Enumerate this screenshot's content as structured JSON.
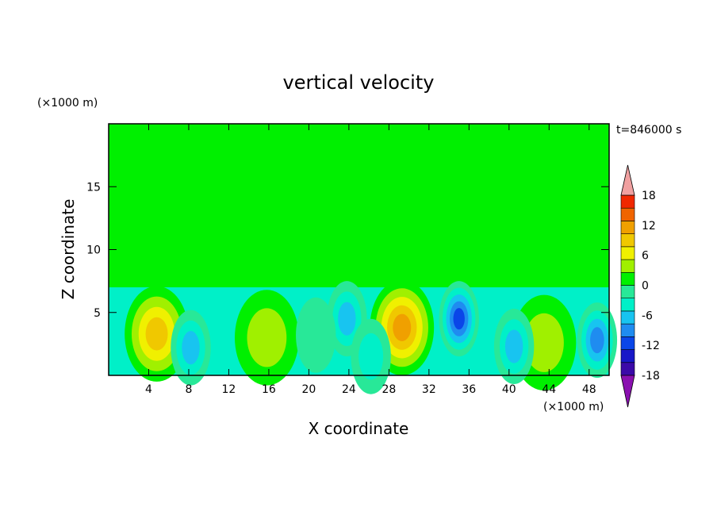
{
  "chart_data": {
    "type": "heatmap",
    "title": "vertical velocity",
    "xlabel": "X coordinate",
    "ylabel": "Z coordinate",
    "x_unit": "(×1000 m)",
    "y_unit": "(×1000 m)",
    "time_label": "t=846000 s",
    "xlim": [
      0,
      50
    ],
    "ylim": [
      0,
      20
    ],
    "x_ticks": [
      4,
      8,
      12,
      16,
      20,
      24,
      28,
      32,
      36,
      40,
      44,
      48
    ],
    "y_ticks": [
      5,
      10,
      15
    ],
    "grid": false,
    "colorbar": {
      "position": "right",
      "tick_labels": [
        "18",
        "12",
        "6",
        "0",
        "-6",
        "-12",
        "-18"
      ],
      "tick_values": [
        18,
        12,
        6,
        0,
        -6,
        -12,
        -18
      ],
      "levels": [
        -21,
        -18,
        -15,
        -12,
        -9,
        -6,
        -3,
        0,
        3,
        6,
        9,
        12,
        15,
        18,
        21
      ],
      "colors": [
        "#8a10b0",
        "#3b0aa8",
        "#1818c8",
        "#0a46e8",
        "#1f8cf0",
        "#18c4f0",
        "#00f0c8",
        "#28e898",
        "#00f000",
        "#a0f000",
        "#f0f000",
        "#f0c800",
        "#f0a000",
        "#f06400",
        "#f02800",
        "#f0a0a0"
      ]
    },
    "features": [
      {
        "x": 4.8,
        "z": 3.3,
        "w": 14,
        "label": "updraft"
      },
      {
        "x": 29.3,
        "z": 3.8,
        "w": 17,
        "label": "updraft"
      },
      {
        "x": 43.5,
        "z": 2.6,
        "w": 8,
        "label": "updraft"
      },
      {
        "x": 15.8,
        "z": 3.0,
        "w": 6,
        "label": "updraft"
      },
      {
        "x": 35.0,
        "z": 4.5,
        "w": -16,
        "label": "downdraft"
      },
      {
        "x": 48.8,
        "z": 2.8,
        "w": -14,
        "label": "downdraft"
      },
      {
        "x": 8.2,
        "z": 2.2,
        "w": -10,
        "label": "downdraft"
      },
      {
        "x": 40.5,
        "z": 2.3,
        "w": -9,
        "label": "downdraft"
      },
      {
        "x": 23.8,
        "z": 4.5,
        "w": -9,
        "label": "downdraft"
      },
      {
        "x": 20.7,
        "z": 3.2,
        "w": -5,
        "label": "downdraft"
      },
      {
        "x": 26.2,
        "z": 1.5,
        "w": -8,
        "label": "downdraft"
      }
    ]
  }
}
